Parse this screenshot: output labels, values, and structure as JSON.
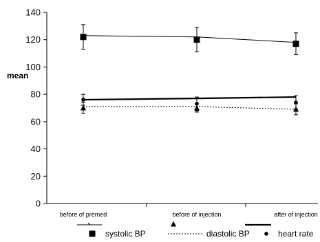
{
  "chart_data": {
    "type": "line",
    "title": "",
    "xlabel": "",
    "ylabel": "mean",
    "ylim": [
      0,
      140
    ],
    "yticks": [
      0,
      20,
      40,
      60,
      80,
      100,
      120,
      140
    ],
    "categories": [
      "before of premed",
      "before of injection",
      "after of injection"
    ],
    "grid": false,
    "legend_position": "bottom",
    "series": [
      {
        "name": "systolic BP",
        "marker": "square",
        "line": "thin-solid",
        "values": [
          123,
          122,
          118
        ],
        "marker_values": [
          122,
          120,
          117
        ],
        "error": [
          9,
          9,
          8
        ]
      },
      {
        "name": "diastolic BP",
        "marker": "triangle",
        "line": "dotted",
        "values": [
          71,
          71,
          69
        ],
        "marker_values": [
          70,
          70,
          69
        ],
        "error": [
          4,
          3,
          4
        ]
      },
      {
        "name": "heart rate",
        "marker": "circle",
        "line": "thick-solid",
        "values": [
          76,
          77,
          78
        ],
        "marker_values": [
          76,
          73,
          74
        ],
        "error": [
          4,
          5,
          5
        ]
      }
    ]
  }
}
